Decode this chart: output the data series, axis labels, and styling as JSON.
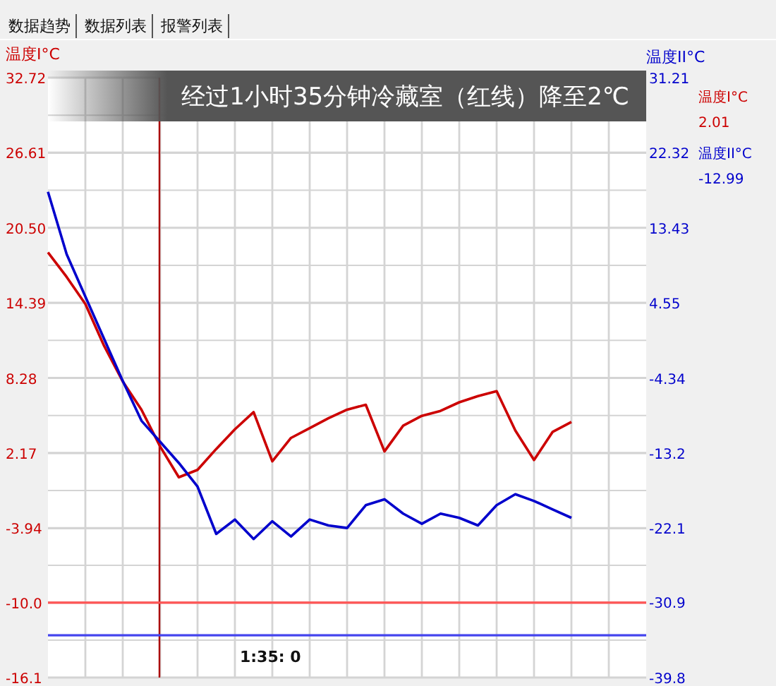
{
  "chart_data": {
    "type": "line",
    "title": "经过1小时35分钟冷藏室（红线）降至2℃",
    "ylabel": "温度I°C",
    "y2label": "温度II°C",
    "annotations": [
      "数据趋势",
      "数据列表",
      "报警列表",
      "2.01",
      "-12.99",
      "1:35: 0"
    ],
    "categories": [
      null,
      null,
      null,
      null,
      null,
      null,
      null,
      null,
      null,
      null,
      null,
      null,
      null,
      null,
      null,
      null,
      null,
      null,
      null,
      null,
      null,
      null,
      null,
      null,
      null,
      null,
      null,
      null,
      null,
      null,
      null,
      null,
      null
    ],
    "series": [
      {
        "name": "温度I°C",
        "color": "#cc0000",
        "values": [
          18.5,
          16.5,
          14.3,
          10.9,
          8.0,
          5.7,
          2.7,
          0.2,
          0.8,
          2.5,
          4.1,
          5.5,
          1.5,
          3.4,
          4.2,
          5.0,
          5.7,
          6.1,
          2.3,
          4.4,
          5.2,
          5.6,
          6.3,
          6.8,
          7.2,
          4.0,
          1.6,
          3.9,
          4.7,
          null,
          null,
          null,
          null
        ]
      },
      {
        "name": "温度II°C",
        "color": "#0000cc",
        "axis": "y2",
        "values": [
          17.7,
          10.3,
          5.3,
          0.3,
          -4.7,
          -9.4,
          -11.9,
          -14.4,
          -17.2,
          -22.8,
          -21.1,
          -23.4,
          -21.3,
          -23.1,
          -21.1,
          -21.8,
          -22.1,
          -19.4,
          -18.7,
          -20.4,
          -21.6,
          -20.4,
          -20.9,
          -21.8,
          -19.4,
          -18.1,
          -18.9,
          -19.9,
          -20.9,
          null,
          null,
          null,
          null
        ]
      }
    ],
    "ylim": [
      -16.1,
      32.72
    ],
    "yticks": [
      -16.1,
      {
        "value": -13.05,
        "label": null
      },
      {
        "value": -10.0,
        "label": "-10.0"
      },
      {
        "value": -6.97,
        "label": null
      },
      -3.94,
      {
        "value": -0.885,
        "label": null
      },
      2.17,
      {
        "value": 5.225,
        "label": null
      },
      8.28,
      {
        "value": 11.335,
        "label": null
      },
      14.39,
      {
        "value": 17.445,
        "label": null
      },
      {
        "value": 20.5,
        "label": "20.50"
      },
      {
        "value": 23.555,
        "label": null
      },
      26.61,
      {
        "value": 29.665,
        "label": null
      },
      32.72
    ],
    "y2lim": [
      -39.8,
      31.21
    ],
    "y2ticks": [
      -39.8,
      -30.9,
      -22.1,
      -13.2,
      -4.34,
      4.55,
      13.43,
      22.32,
      31.21
    ],
    "ref_lines": [
      {
        "axis": "y",
        "value": -10.0,
        "color": "#ff5555"
      },
      {
        "axis": "y2",
        "value": -34.8,
        "color": "#4444ee"
      }
    ],
    "grid": true,
    "legend": "right",
    "line_style": "solid"
  }
}
